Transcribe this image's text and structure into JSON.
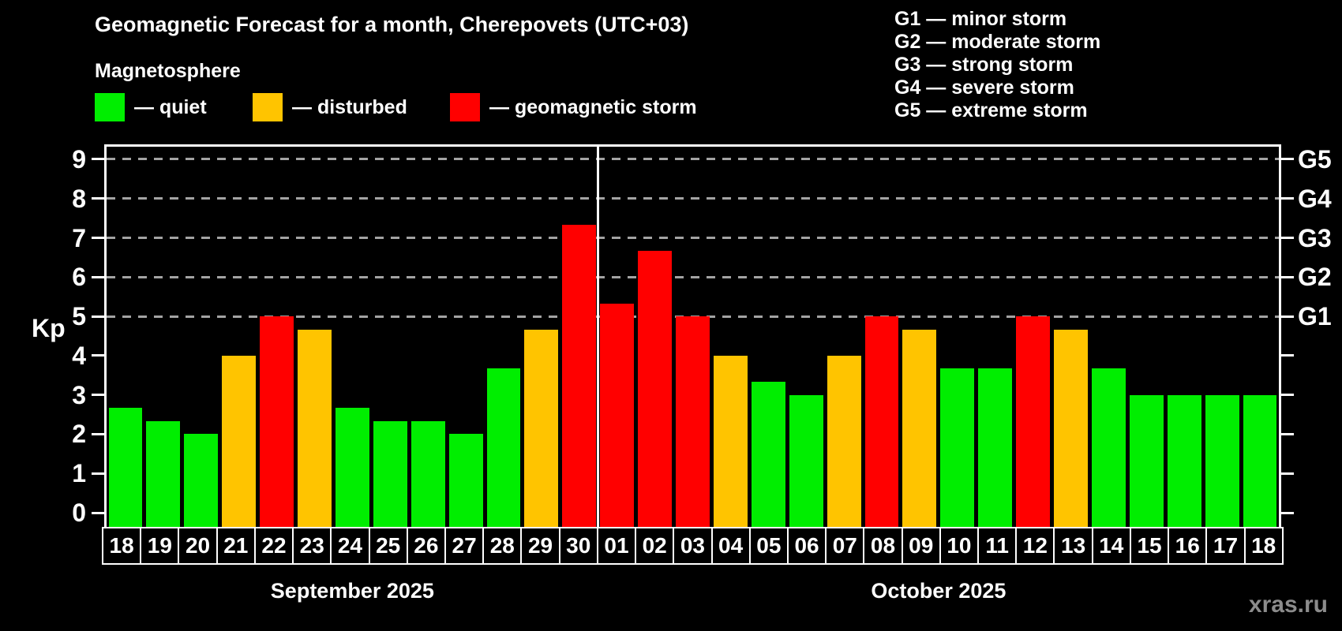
{
  "title": "Geomagnetic Forecast for a month, Cherepovets (UTC+03)",
  "subtitle": "Magnetosphere",
  "bar_legend": [
    {
      "key": "quiet",
      "label": "— quiet"
    },
    {
      "key": "disturbed",
      "label": "— disturbed"
    },
    {
      "key": "storm",
      "label": "— geomagnetic storm"
    }
  ],
  "storm_legend": [
    "G1 — minor storm",
    "G2 — moderate storm",
    "G3 — strong storm",
    "G4 — severe storm",
    "G5 — extreme storm"
  ],
  "watermark": "xras.ru",
  "colors": {
    "quiet": "#00ee00",
    "disturbed": "#ffc400",
    "storm": "#ff0000",
    "axis": "#ffffff",
    "grid": "#a3a3a3",
    "background": "#000000"
  },
  "chart_data": {
    "type": "bar",
    "title": "Geomagnetic Forecast for a month, Cherepovets (UTC+03)",
    "ylabel": "Kp",
    "ylim": [
      0,
      9
    ],
    "yticks": [
      0,
      1,
      2,
      3,
      4,
      5,
      6,
      7,
      8,
      9
    ],
    "grid_levels": [
      5,
      6,
      7,
      8,
      9
    ],
    "right_axis": {
      "5": "G1",
      "6": "G2",
      "7": "G3",
      "8": "G4",
      "9": "G5"
    },
    "legend_position": "top",
    "months": [
      {
        "label": "September 2025",
        "days": 13
      },
      {
        "label": "October 2025",
        "days": 18
      }
    ],
    "categories": [
      "18",
      "19",
      "20",
      "21",
      "22",
      "23",
      "24",
      "25",
      "26",
      "27",
      "28",
      "29",
      "30",
      "01",
      "02",
      "03",
      "04",
      "05",
      "06",
      "07",
      "08",
      "09",
      "10",
      "11",
      "12",
      "13",
      "14",
      "15",
      "16",
      "17",
      "18"
    ],
    "values": [
      2.67,
      2.33,
      2.0,
      4.0,
      5.0,
      4.67,
      2.67,
      2.33,
      2.33,
      2.0,
      3.67,
      4.67,
      7.33,
      5.33,
      6.67,
      5.0,
      4.0,
      3.33,
      3.0,
      4.0,
      5.0,
      4.67,
      3.67,
      3.67,
      5.0,
      4.67,
      3.67,
      3.0,
      3.0,
      3.0,
      3.0
    ],
    "status": [
      "quiet",
      "quiet",
      "quiet",
      "disturbed",
      "storm",
      "disturbed",
      "quiet",
      "quiet",
      "quiet",
      "quiet",
      "quiet",
      "disturbed",
      "storm",
      "storm",
      "storm",
      "storm",
      "disturbed",
      "quiet",
      "quiet",
      "disturbed",
      "storm",
      "disturbed",
      "quiet",
      "quiet",
      "storm",
      "disturbed",
      "quiet",
      "quiet",
      "quiet",
      "quiet",
      "quiet"
    ]
  }
}
